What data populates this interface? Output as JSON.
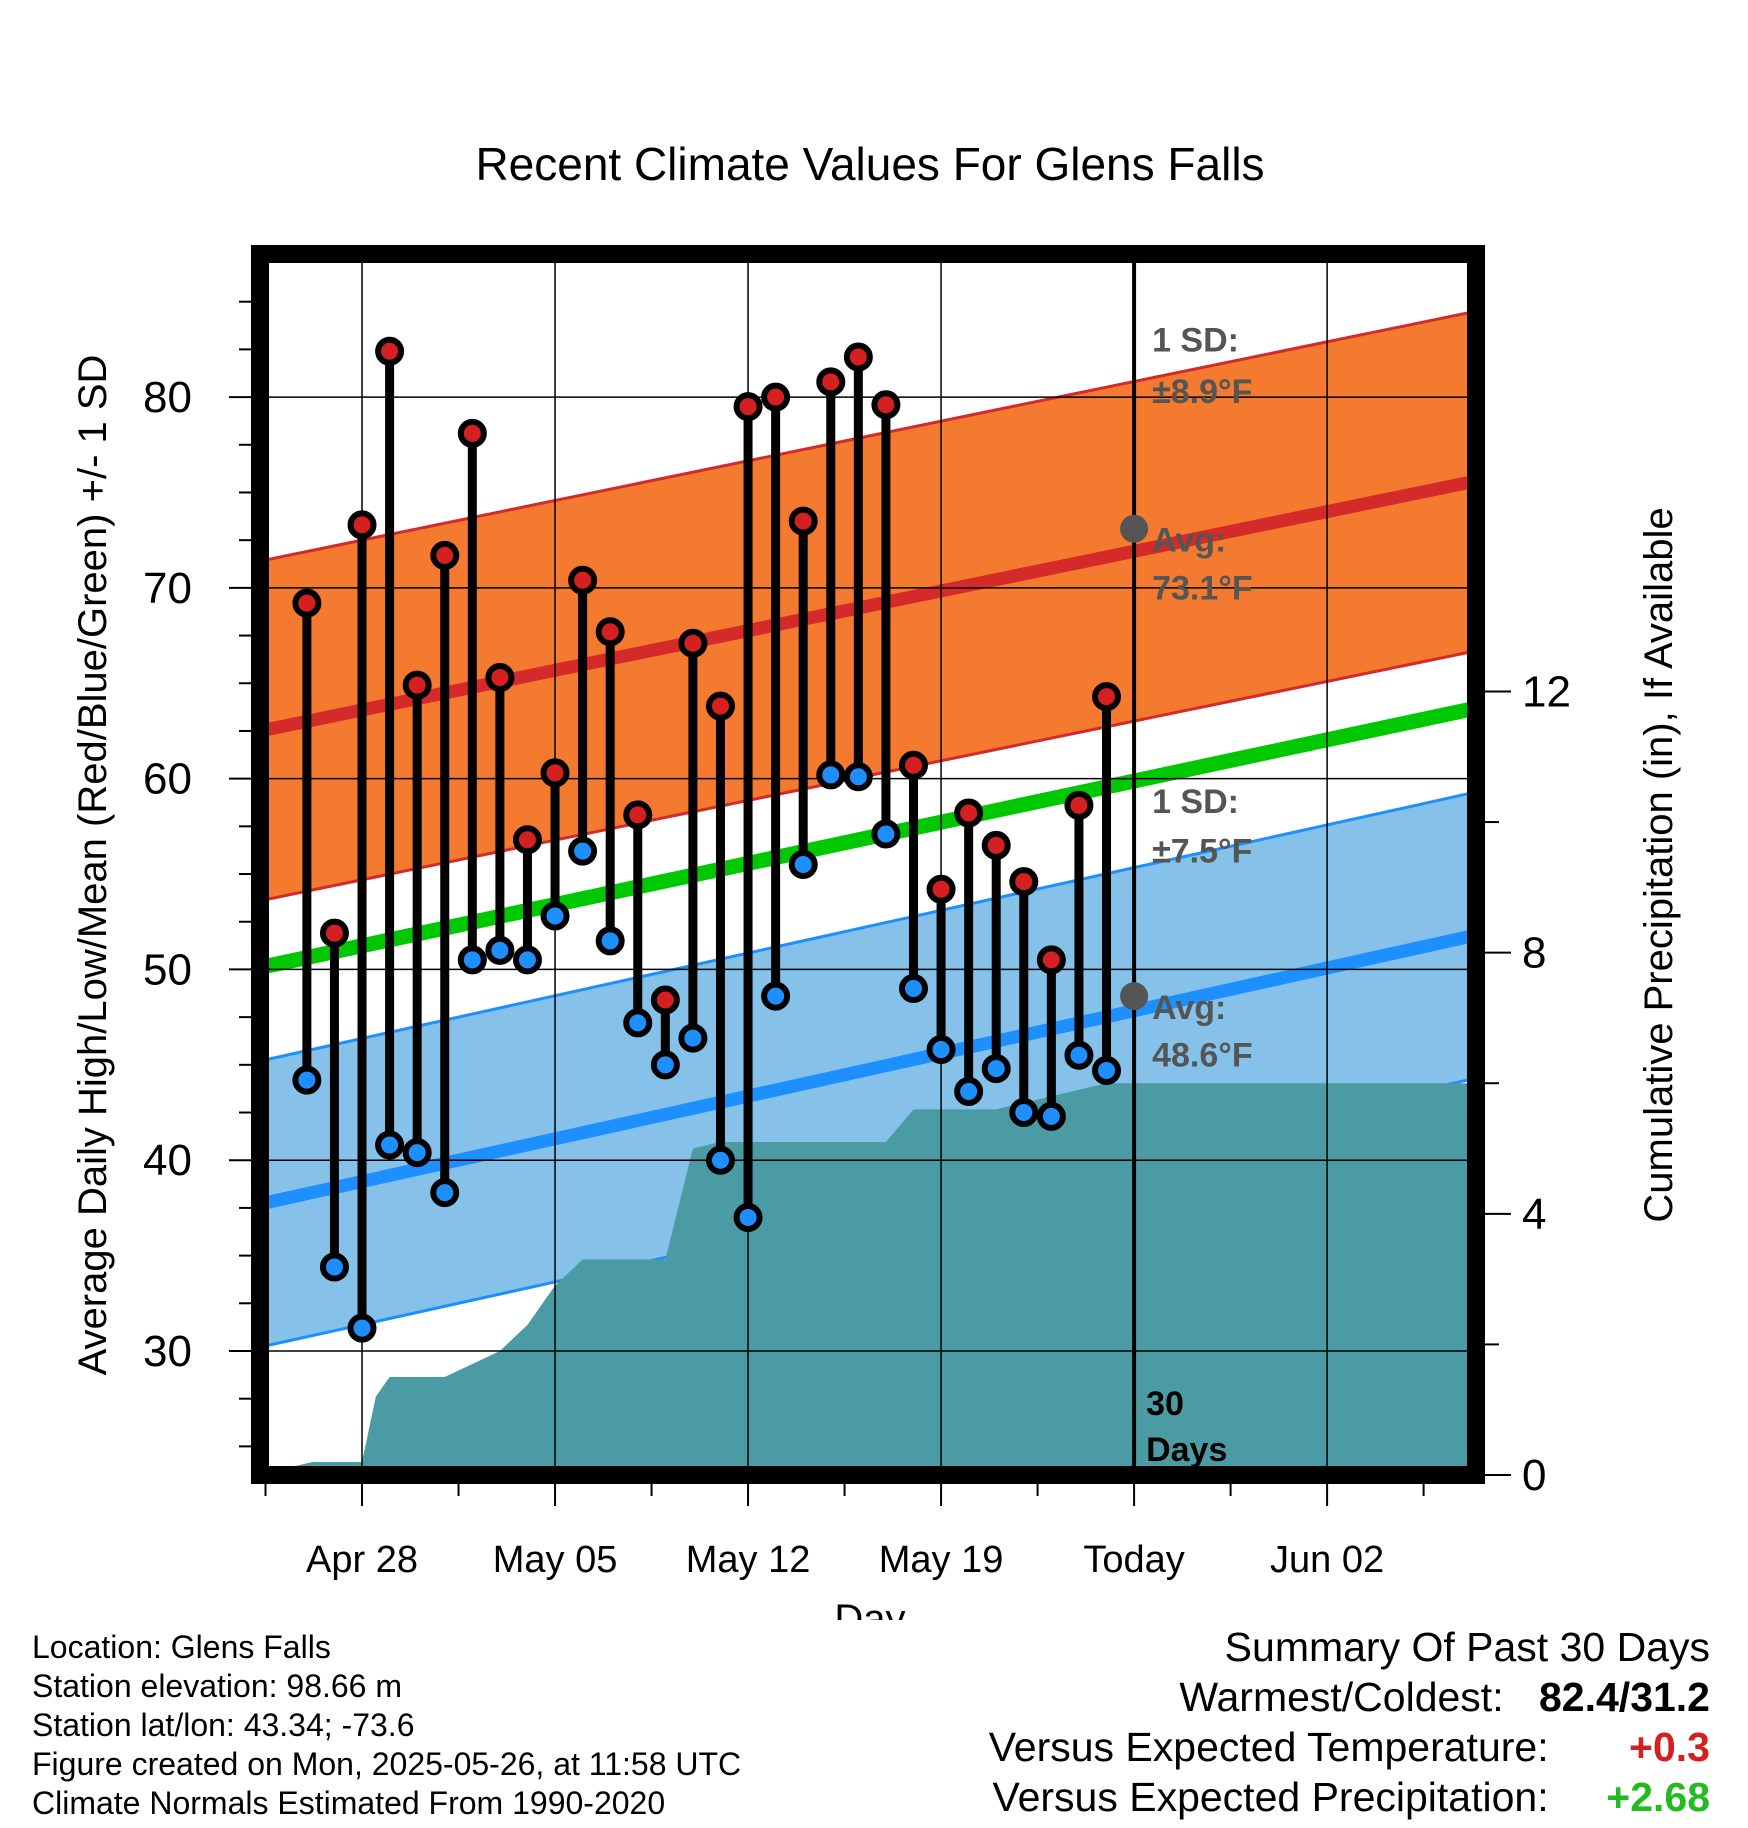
{
  "chart_data": {
    "type": "line",
    "title": "Recent Climate Values For Glens Falls",
    "xlabel": "Day",
    "ylabel": "Average Daily High/Low/Mean (Red/Blue/Green) +/- 1 SD",
    "y2label": "Cumulative Precipitation (in), If Available",
    "ylim": [
      23.5,
      87.5
    ],
    "y2lim": [
      0,
      18.7
    ],
    "yticks": [
      30,
      40,
      50,
      60,
      70,
      80
    ],
    "y2ticks": [
      0,
      4,
      8,
      12
    ],
    "xlim": [
      -3.7,
      40.4
    ],
    "xticks": [
      {
        "day": 0,
        "label": "Apr 28"
      },
      {
        "day": 7,
        "label": "May 05"
      },
      {
        "day": 14,
        "label": "May 12"
      },
      {
        "day": 21,
        "label": "May 19"
      },
      {
        "day": 28,
        "label": "Today"
      },
      {
        "day": 35,
        "label": "Jun 02"
      }
    ],
    "days": [
      -2,
      -1,
      0,
      1,
      2,
      3,
      4,
      5,
      6,
      7,
      8,
      9,
      10,
      11,
      12,
      13,
      14,
      15,
      16,
      17,
      18,
      19,
      20,
      21,
      22,
      23,
      24,
      25,
      26,
      27
    ],
    "highs": [
      69.2,
      51.9,
      73.3,
      82.4,
      64.9,
      71.7,
      78.1,
      65.3,
      56.8,
      60.3,
      70.4,
      67.7,
      58.1,
      48.4,
      67.1,
      63.8,
      79.5,
      80.0,
      73.5,
      80.8,
      82.1,
      79.6,
      60.7,
      54.2,
      58.2,
      56.5,
      54.6,
      50.5,
      58.6,
      64.3
    ],
    "lows": [
      44.2,
      34.4,
      31.2,
      40.8,
      40.4,
      38.3,
      50.5,
      51.0,
      50.5,
      52.8,
      56.2,
      51.5,
      47.2,
      45.0,
      46.4,
      40.0,
      37.0,
      48.6,
      55.5,
      60.2,
      60.1,
      57.1,
      49.0,
      45.8,
      43.6,
      44.8,
      42.5,
      42.3,
      45.5,
      44.7
    ],
    "normals": {
      "high_avg": [
        62.5,
        75.6
      ],
      "high_sd": 8.9,
      "low_avg": [
        37.7,
        51.8
      ],
      "low_sd": 7.5,
      "mean_avg": [
        50.1,
        63.7
      ]
    },
    "precip": {
      "days": [
        -3.5,
        -2.8,
        -1.8,
        -1,
        0,
        0.5,
        1,
        2,
        3,
        4,
        5,
        6,
        7,
        8,
        9,
        10,
        11,
        12,
        13,
        14,
        15,
        16,
        17,
        18,
        19,
        20,
        21,
        22,
        23,
        24,
        25,
        26,
        27,
        28,
        40.4
      ],
      "values": [
        0,
        0.1,
        0.2,
        0.2,
        0.2,
        1.2,
        1.5,
        1.5,
        1.5,
        1.7,
        1.9,
        2.3,
        2.9,
        3.3,
        3.3,
        3.3,
        3.3,
        5.0,
        5.1,
        5.1,
        5.1,
        5.1,
        5.1,
        5.1,
        5.1,
        5.6,
        5.6,
        5.6,
        5.6,
        5.7,
        5.8,
        5.9,
        6.0,
        6.0,
        6.0
      ]
    },
    "annotations": {
      "high_sd_label": "1 SD:",
      "high_sd_value": "±8.9°F",
      "high_avg_label": "Avg:",
      "high_avg_value": "73.1°F",
      "low_sd_label": "1 SD:",
      "low_sd_value": "±7.5°F",
      "low_avg_label": "Avg:",
      "low_avg_value": "48.6°F",
      "days_label_1": "30",
      "days_label_2": "Days"
    },
    "today_day": 28,
    "today_high_avg": 73.1,
    "today_low_avg": 48.6,
    "colors": {
      "high_band": "#f47a30",
      "high_line": "#d42a2a",
      "low_band": "#85c1e8",
      "low_line": "#1e8fff",
      "mean_line": "#00c800",
      "precip": "#4a9ba4",
      "high_marker": "#d42020",
      "low_marker": "#1e8fff",
      "annotation": "#555555"
    },
    "grid": true
  },
  "footer": {
    "location": "Location: Glens Falls",
    "elevation": "Station elevation: 98.66 m",
    "latlon": "Station lat/lon: 43.34; -73.6",
    "created": "Figure created on Mon, 2025-05-26, at 11:58 UTC",
    "normals": "Climate Normals Estimated From 1990-2020"
  },
  "summary": {
    "title": "Summary Of Past 30 Days",
    "warmest_label": "Warmest/Coldest:",
    "warmest_value": "82.4/31.2",
    "temp_label": "Versus Expected Temperature:",
    "temp_value": "+0.3",
    "temp_color": "#d42020",
    "precip_label": "Versus Expected Precipitation:",
    "precip_value": "+2.68",
    "precip_color": "#22bb22"
  }
}
